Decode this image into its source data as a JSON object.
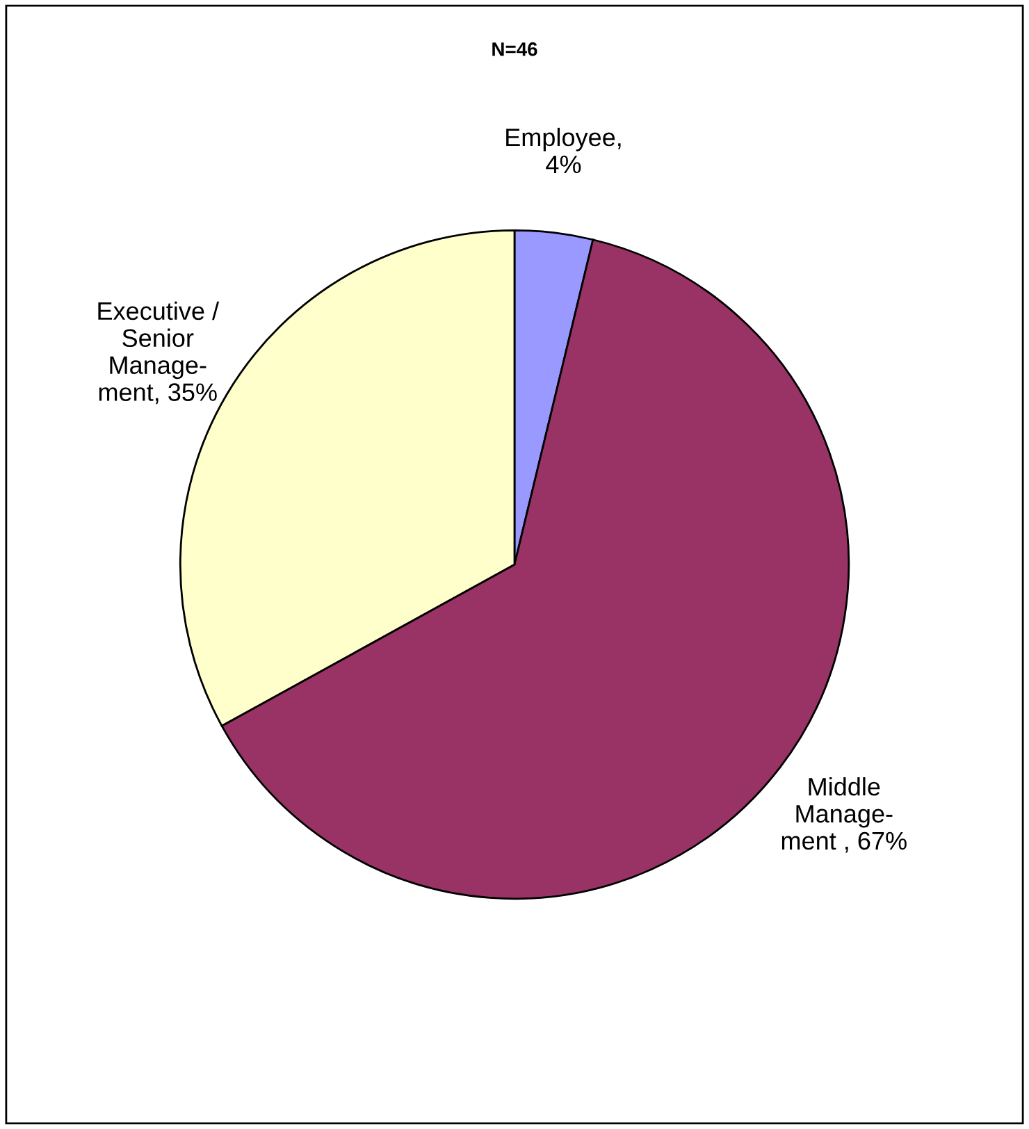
{
  "chart_data": {
    "type": "pie",
    "title": "N=46",
    "categories": [
      "Employee,\n4%",
      "Middle\nManage-\nment , 67%",
      "Executive /\nSenior\nManage-\nment, 35%"
    ],
    "values": [
      4,
      67,
      35
    ],
    "colors": [
      "#9999ff",
      "#993366",
      "#ffffcc"
    ],
    "legend": false
  }
}
